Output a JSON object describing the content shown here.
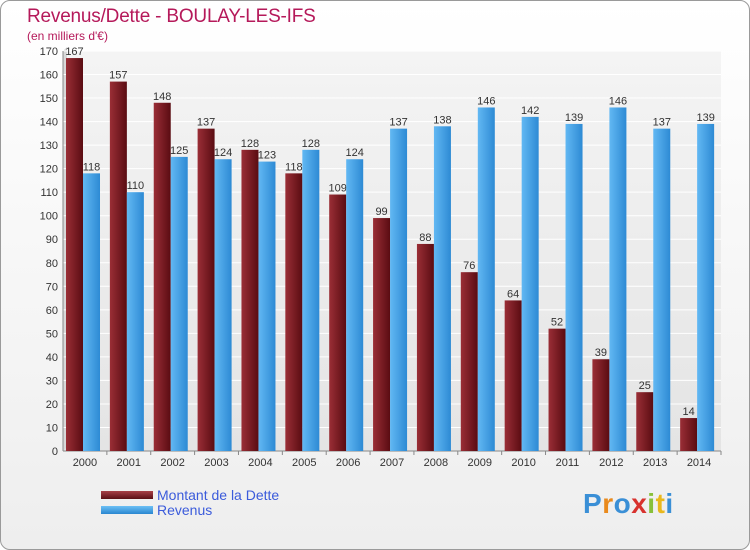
{
  "title": "Revenus/Dette - BOULAY-LES-IFS",
  "subtitle": "(en milliers d'€)",
  "brand": "Proxiti",
  "chart_data": {
    "type": "bar",
    "categories": [
      "2000",
      "2001",
      "2002",
      "2003",
      "2004",
      "2005",
      "2006",
      "2007",
      "2008",
      "2009",
      "2010",
      "2011",
      "2012",
      "2013",
      "2014"
    ],
    "series": [
      {
        "name": "Montant de la Dette",
        "color": "#7a1b22",
        "values": [
          167,
          157,
          148,
          137,
          128,
          118,
          109,
          99,
          88,
          76,
          64,
          52,
          39,
          25,
          14
        ]
      },
      {
        "name": "Revenus",
        "color": "#3aa0e8",
        "values": [
          118,
          110,
          125,
          124,
          123,
          128,
          124,
          137,
          138,
          146,
          142,
          139,
          146,
          137,
          139
        ]
      }
    ],
    "ylim": [
      0,
      170
    ],
    "yticks": [
      0,
      10,
      20,
      30,
      40,
      50,
      60,
      70,
      80,
      90,
      100,
      110,
      120,
      130,
      140,
      150,
      160,
      170
    ],
    "grid": true,
    "legend_position": "bottom-left"
  },
  "colors": {
    "title": "#b5195a",
    "debt": "#7a1b22",
    "revenue": "#3aa0e8",
    "legend_text": "#3b5bdb"
  }
}
